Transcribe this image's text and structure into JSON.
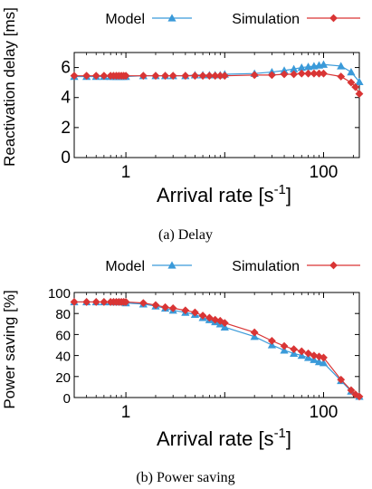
{
  "chart_data": [
    {
      "type": "line",
      "caption": "(a) Delay",
      "xlabel": "Arrival rate [s",
      "xlabel_sup": "-1",
      "xlabel_end": "]",
      "ylabel": "Reactivation delay [ms]",
      "x_scale": "log",
      "xlim": [
        0.3,
        230
      ],
      "ylim": [
        0,
        7
      ],
      "xticks": [
        1,
        10,
        100
      ],
      "xtick_labels": [
        "1",
        "",
        "100"
      ],
      "yticks": [
        0,
        2,
        4,
        6
      ],
      "ytick_labels": [
        "0",
        "2",
        "4",
        "6"
      ],
      "grid": false,
      "legend_position": "top",
      "series": [
        {
          "name": "Model",
          "color": "#3a9ad9",
          "marker": "triangle",
          "x": [
            0.3,
            0.4,
            0.5,
            0.6,
            0.7,
            0.75,
            0.8,
            0.85,
            0.9,
            0.95,
            1,
            1.5,
            2,
            2.5,
            3,
            4,
            5,
            6,
            7,
            8,
            9,
            10,
            20,
            30,
            40,
            50,
            60,
            70,
            80,
            90,
            100,
            150,
            190,
            230
          ],
          "y": [
            5.4,
            5.4,
            5.4,
            5.4,
            5.4,
            5.4,
            5.4,
            5.4,
            5.4,
            5.4,
            5.4,
            5.45,
            5.45,
            5.45,
            5.45,
            5.45,
            5.5,
            5.5,
            5.5,
            5.5,
            5.5,
            5.55,
            5.6,
            5.7,
            5.8,
            5.9,
            6.0,
            6.05,
            6.1,
            6.15,
            6.2,
            6.1,
            5.7,
            5.05
          ]
        },
        {
          "name": "Simulation",
          "color": "#d93535",
          "marker": "diamond",
          "x": [
            0.3,
            0.4,
            0.5,
            0.6,
            0.7,
            0.75,
            0.8,
            0.85,
            0.9,
            0.95,
            1,
            1.5,
            2,
            2.5,
            3,
            4,
            5,
            6,
            7,
            8,
            9,
            10,
            20,
            30,
            40,
            50,
            60,
            70,
            80,
            90,
            100,
            150,
            190,
            210,
            230
          ],
          "y": [
            5.45,
            5.45,
            5.45,
            5.45,
            5.45,
            5.45,
            5.45,
            5.45,
            5.45,
            5.45,
            5.45,
            5.45,
            5.45,
            5.45,
            5.45,
            5.45,
            5.45,
            5.45,
            5.45,
            5.45,
            5.45,
            5.45,
            5.5,
            5.5,
            5.55,
            5.55,
            5.6,
            5.6,
            5.6,
            5.6,
            5.6,
            5.4,
            5.0,
            4.7,
            4.25
          ]
        }
      ]
    },
    {
      "type": "line",
      "caption": "(b) Power saving",
      "xlabel": "Arrival rate [s",
      "xlabel_sup": "-1",
      "xlabel_end": "]",
      "ylabel": "Power saving [%]",
      "x_scale": "log",
      "xlim": [
        0.3,
        230
      ],
      "ylim": [
        0,
        100
      ],
      "xticks": [
        1,
        10,
        100
      ],
      "xtick_labels": [
        "1",
        "",
        "100"
      ],
      "yticks": [
        0,
        20,
        40,
        60,
        80,
        100
      ],
      "ytick_labels": [
        "0",
        "20",
        "40",
        "60",
        "80",
        "100"
      ],
      "grid": false,
      "legend_position": "top",
      "series": [
        {
          "name": "Model",
          "color": "#3a9ad9",
          "marker": "triangle",
          "x": [
            0.3,
            0.4,
            0.5,
            0.6,
            0.7,
            0.75,
            0.8,
            0.85,
            0.9,
            0.95,
            1,
            1.5,
            2,
            2.5,
            3,
            4,
            5,
            6,
            7,
            8,
            9,
            10,
            20,
            30,
            40,
            50,
            60,
            70,
            80,
            90,
            100,
            150,
            190,
            230
          ],
          "y": [
            91,
            91,
            91,
            91,
            91,
            91,
            91,
            91,
            91,
            91,
            90,
            89,
            87,
            85,
            83,
            81,
            79,
            76,
            74,
            72,
            70,
            67,
            58,
            50,
            45,
            42,
            40,
            38,
            36,
            34,
            33,
            16,
            6,
            1
          ]
        },
        {
          "name": "Simulation",
          "color": "#d93535",
          "marker": "diamond",
          "x": [
            0.3,
            0.4,
            0.5,
            0.6,
            0.7,
            0.75,
            0.8,
            0.85,
            0.9,
            0.95,
            1,
            1.5,
            2,
            2.5,
            3,
            4,
            5,
            6,
            7,
            8,
            9,
            10,
            20,
            30,
            40,
            50,
            60,
            70,
            80,
            90,
            100,
            150,
            190,
            210,
            230
          ],
          "y": [
            91,
            91,
            91,
            91,
            91,
            91,
            91,
            91,
            91,
            91,
            91,
            90,
            88,
            86,
            85,
            83,
            81,
            78,
            76,
            74,
            73,
            71,
            62,
            54,
            49,
            46,
            44,
            42,
            40,
            39,
            38,
            17,
            7,
            3,
            1
          ]
        }
      ]
    }
  ]
}
